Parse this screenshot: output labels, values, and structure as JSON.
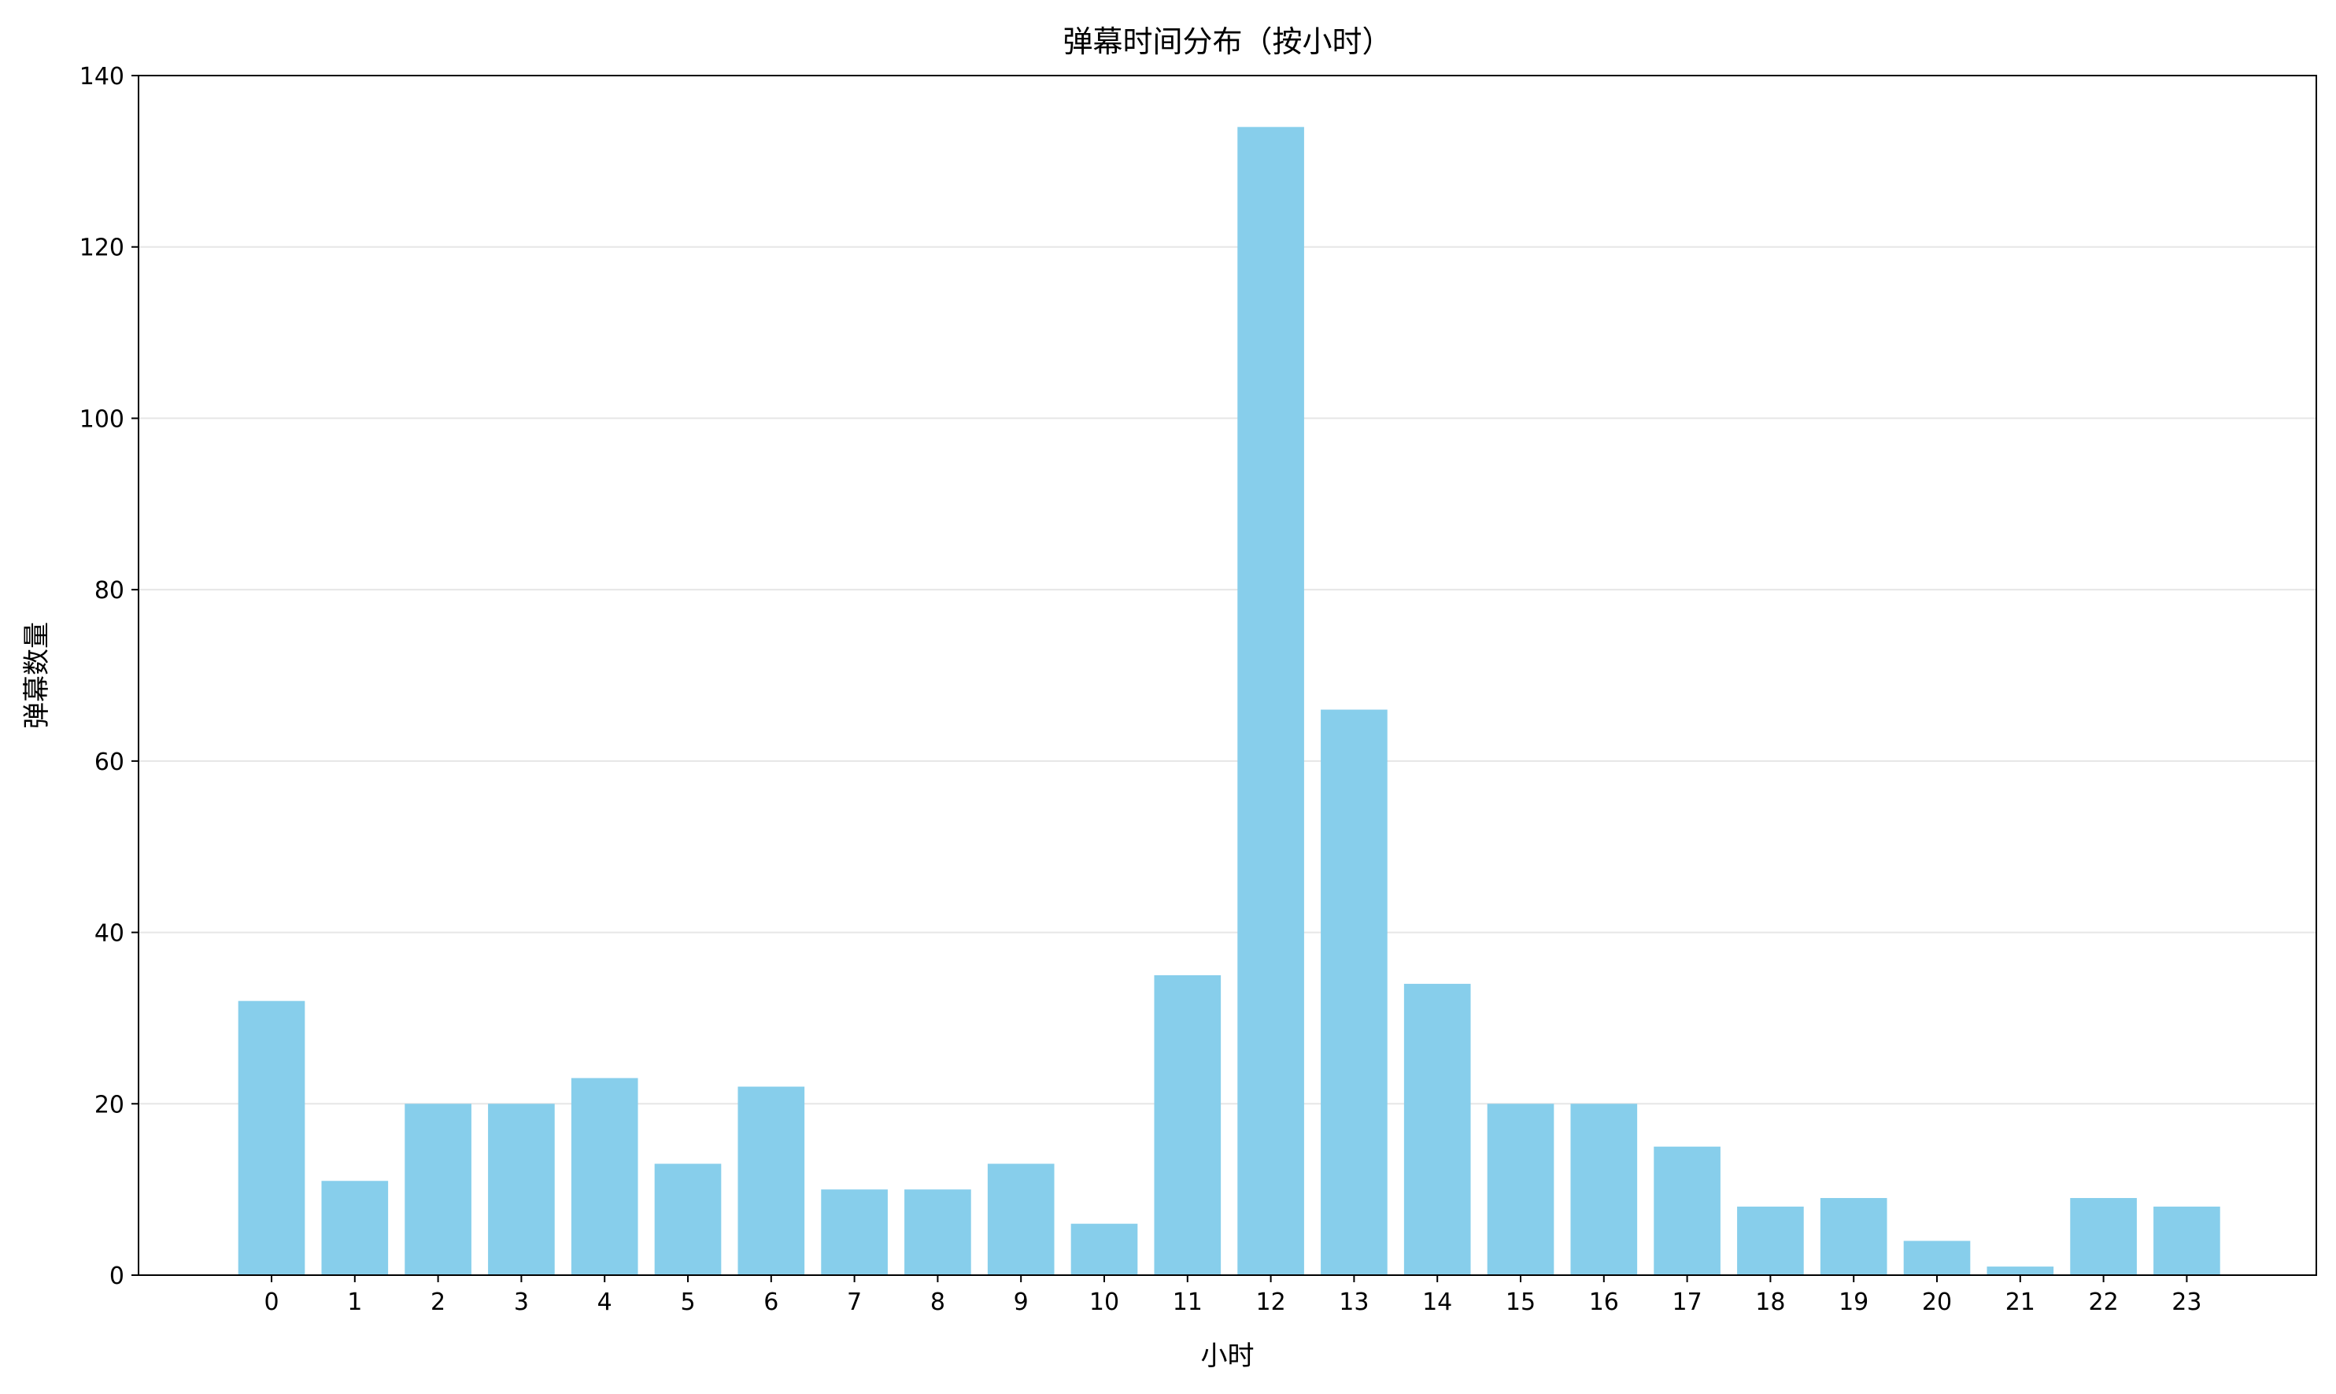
{
  "chart_data": {
    "type": "bar",
    "title": "弹幕时间分布（按小时）",
    "xlabel": "小时",
    "ylabel": "弹幕数量",
    "categories": [
      "0",
      "1",
      "2",
      "3",
      "4",
      "5",
      "6",
      "7",
      "8",
      "9",
      "10",
      "11",
      "12",
      "13",
      "14",
      "15",
      "16",
      "17",
      "18",
      "19",
      "20",
      "21",
      "22",
      "23"
    ],
    "values": [
      32,
      11,
      20,
      20,
      23,
      13,
      22,
      10,
      10,
      13,
      6,
      35,
      134,
      66,
      34,
      20,
      20,
      15,
      8,
      9,
      4,
      1,
      9,
      8
    ],
    "ylim": [
      0,
      140
    ],
    "yticks": [
      0,
      20,
      40,
      60,
      80,
      100,
      120,
      140
    ],
    "grid": "horizontal",
    "legend": "none",
    "colors": {
      "bar": "#87CEEB",
      "grid": "#e6e6e6",
      "axis": "#000000"
    }
  }
}
